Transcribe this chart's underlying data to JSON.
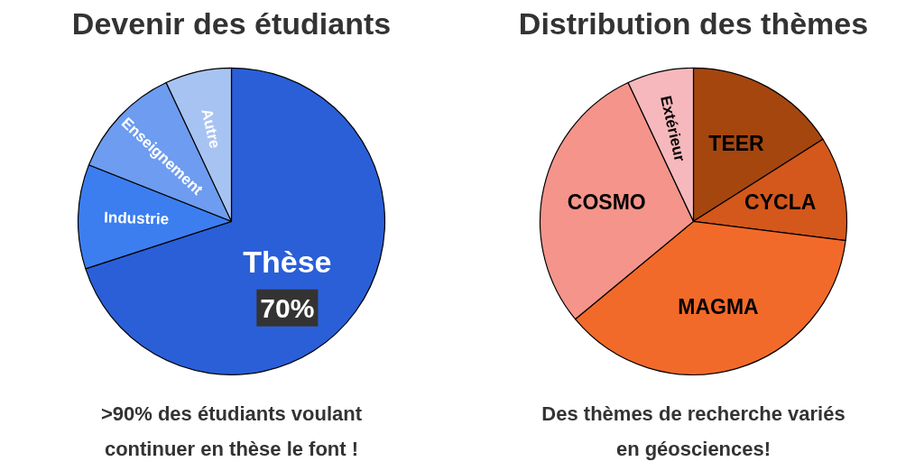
{
  "chart_data": [
    {
      "type": "pie",
      "title": "Devenir des étudiants",
      "categories": [
        "Thèse",
        "Industrie",
        "Enseignement",
        "Autre"
      ],
      "values": [
        70,
        11,
        12,
        7
      ],
      "colors": [
        "#2a5fd8",
        "#3c7ef0",
        "#6d9cf0",
        "#a7c3f2"
      ],
      "value_labels": [
        "70%",
        null,
        null,
        null
      ],
      "annotations": [
        ">90% des étudiants voulant\ncontinuer en thèse le font !"
      ]
    },
    {
      "type": "pie",
      "title": "Distribution des thèmes",
      "categories": [
        "TEER",
        "CYCLA",
        "MAGMA",
        "COSMO",
        "Extérieur"
      ],
      "values": [
        16,
        11,
        37,
        29,
        7
      ],
      "colors": [
        "#a5460f",
        "#d4571c",
        "#f26a2a",
        "#f5948a",
        "#f6b8bc"
      ],
      "annotations": [
        "Des thèmes de recherche variés\nen géosciences!"
      ]
    }
  ]
}
